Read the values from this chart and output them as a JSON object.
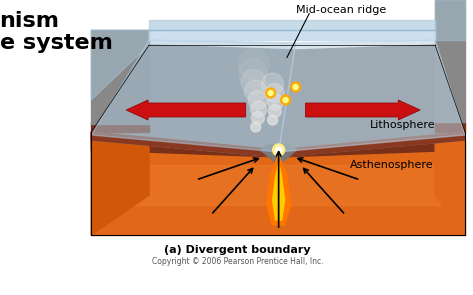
{
  "title_bottom": "(a) Divergent boundary",
  "copyright": "Copyright © 2006 Pearson Prentice Hall, Inc.",
  "label_ridge": "Mid-ocean ridge",
  "label_litho": "Lithosphere",
  "label_astheno": "Asthenosphere",
  "left_text1": "nism",
  "left_text2": "e system",
  "bg_color": "#ffffff",
  "ocean_blue": "#a8c4d8",
  "ocean_blue2": "#b8d0e2",
  "rock_gray": "#909090",
  "rock_gray2": "#808080",
  "rock_gray3": "#989898",
  "rock_dark": "#6a6a6a",
  "litho_brown": "#7a3018",
  "litho_brown2": "#8a3820",
  "astheno_orange": "#e06818",
  "astheno_orange2": "#d05808",
  "astheno_light": "#f08030",
  "arrow_red": "#cc1010",
  "magma_orange": "#ff7700",
  "magma_yellow": "#ffcc00",
  "smoke_white": "#e8e8e8",
  "ridge_lava": "#cc4400"
}
